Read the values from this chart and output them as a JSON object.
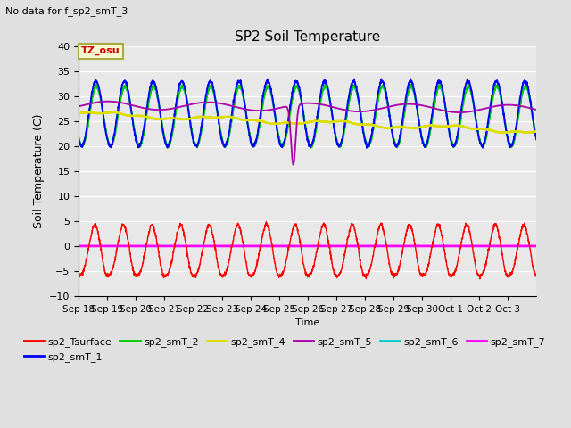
{
  "title": "SP2 Soil Temperature",
  "subtitle": "No data for f_sp2_smT_3",
  "xlabel": "Time",
  "ylabel": "Soil Temperature (C)",
  "ylim": [
    -10,
    40
  ],
  "yticks": [
    -10,
    -5,
    0,
    5,
    10,
    15,
    20,
    25,
    30,
    35,
    40
  ],
  "tz_label": "TZ_osu",
  "bg_color": "#e0e0e0",
  "plot_bg_color": "#e8e8e8",
  "n_days": 16,
  "x_labels": [
    "Sep 18",
    "Sep 19",
    "Sep 20",
    "Sep 21",
    "Sep 22",
    "Sep 23",
    "Sep 24",
    "Sep 25",
    "Sep 26",
    "Sep 27",
    "Sep 28",
    "Sep 29",
    "Sep 30",
    "Oct 1",
    "Oct 2",
    "Oct 3"
  ],
  "colors": {
    "sp2_Tsurface": "#ff0000",
    "sp2_smT_1": "#0000ff",
    "sp2_smT_2": "#00cc00",
    "sp2_smT_4": "#dddd00",
    "sp2_smT_5": "#aa00aa",
    "sp2_smT_6": "#00cccc",
    "sp2_smT_7": "#ff00ff"
  }
}
